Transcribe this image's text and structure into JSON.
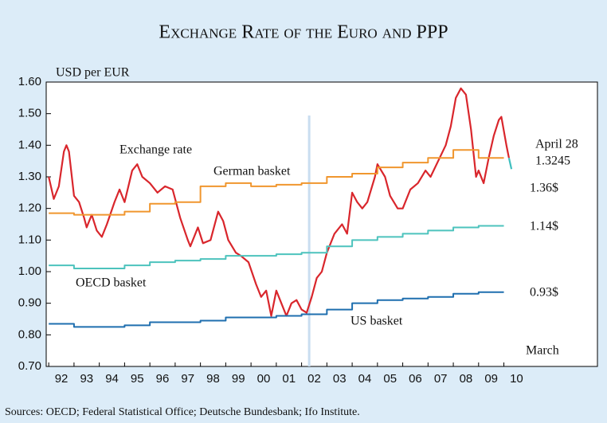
{
  "chart_data": {
    "type": "line",
    "title": "Exchange Rate of the Euro and PPP",
    "y_label": "USD per EUR",
    "source": "Sources: OECD; Federal Statistical Office; Deutsche Bundesbank; Ifo Institute.",
    "xlim": [
      1991.9,
      2013.7
    ],
    "xticks": [
      {
        "value": 1992.5,
        "label": "92"
      },
      {
        "value": 1993.5,
        "label": "93"
      },
      {
        "value": 1994.5,
        "label": "94"
      },
      {
        "value": 1995.5,
        "label": "95"
      },
      {
        "value": 1996.5,
        "label": "96"
      },
      {
        "value": 1997.5,
        "label": "97"
      },
      {
        "value": 1998.5,
        "label": "98"
      },
      {
        "value": 1999.5,
        "label": "99"
      },
      {
        "value": 2000.5,
        "label": "00"
      },
      {
        "value": 2001.5,
        "label": "01"
      },
      {
        "value": 2002.5,
        "label": "02"
      },
      {
        "value": 2003.5,
        "label": "03"
      },
      {
        "value": 2004.5,
        "label": "04"
      },
      {
        "value": 2005.5,
        "label": "05"
      },
      {
        "value": 2006.5,
        "label": "06"
      },
      {
        "value": 2007.5,
        "label": "07"
      },
      {
        "value": 2008.5,
        "label": "08"
      },
      {
        "value": 2009.5,
        "label": "09"
      },
      {
        "value": 2010.5,
        "label": "10"
      }
    ],
    "ylim": [
      0.7,
      1.6
    ],
    "yticks": [
      {
        "value": 0.7,
        "label": "0.70"
      },
      {
        "value": 0.8,
        "label": "0.80"
      },
      {
        "value": 0.9,
        "label": "0.90"
      },
      {
        "value": 1.0,
        "label": "1.00"
      },
      {
        "value": 1.1,
        "label": "1.10"
      },
      {
        "value": 1.2,
        "label": "1.20"
      },
      {
        "value": 1.3,
        "label": "1.30"
      },
      {
        "value": 1.4,
        "label": "1.40"
      },
      {
        "value": 1.5,
        "label": "1.50"
      },
      {
        "value": 1.6,
        "label": "1.60"
      }
    ],
    "reference_x": 2002.3,
    "series": [
      {
        "name": "Exchange rate",
        "color": "#d9262c",
        "step": false,
        "x": [
          1992.0,
          1992.2,
          1992.4,
          1992.6,
          1992.7,
          1992.8,
          1993.0,
          1993.2,
          1993.4,
          1993.5,
          1993.7,
          1993.9,
          1994.1,
          1994.3,
          1994.6,
          1994.8,
          1995.0,
          1995.3,
          1995.5,
          1995.7,
          1996.0,
          1996.3,
          1996.6,
          1996.9,
          1997.2,
          1997.5,
          1997.6,
          1997.9,
          1998.1,
          1998.4,
          1998.7,
          1998.9,
          1999.1,
          1999.4,
          1999.6,
          1999.9,
          2000.2,
          2000.4,
          2000.6,
          2000.8,
          2001.0,
          2001.2,
          2001.4,
          2001.6,
          2001.8,
          2002.0,
          2002.2,
          2002.4,
          2002.6,
          2002.8,
          2003.0,
          2003.3,
          2003.6,
          2003.8,
          2004.0,
          2004.2,
          2004.4,
          2004.6,
          2004.9,
          2005.0,
          2005.3,
          2005.5,
          2005.8,
          2006.0,
          2006.3,
          2006.6,
          2006.9,
          2007.1,
          2007.4,
          2007.7,
          2007.9,
          2008.1,
          2008.3,
          2008.5,
          2008.7,
          2008.9,
          2009.0,
          2009.2,
          2009.4,
          2009.6,
          2009.8,
          2009.9,
          2010.1,
          2010.2
        ],
        "values": [
          1.3,
          1.23,
          1.27,
          1.38,
          1.4,
          1.38,
          1.24,
          1.22,
          1.17,
          1.14,
          1.18,
          1.13,
          1.11,
          1.15,
          1.22,
          1.26,
          1.22,
          1.32,
          1.34,
          1.3,
          1.28,
          1.25,
          1.27,
          1.26,
          1.17,
          1.1,
          1.08,
          1.14,
          1.09,
          1.1,
          1.19,
          1.16,
          1.1,
          1.06,
          1.05,
          1.03,
          0.96,
          0.92,
          0.94,
          0.86,
          0.94,
          0.9,
          0.86,
          0.9,
          0.91,
          0.88,
          0.87,
          0.92,
          0.98,
          1.0,
          1.06,
          1.12,
          1.15,
          1.12,
          1.25,
          1.22,
          1.2,
          1.22,
          1.3,
          1.34,
          1.3,
          1.24,
          1.2,
          1.2,
          1.26,
          1.28,
          1.32,
          1.3,
          1.35,
          1.4,
          1.46,
          1.55,
          1.58,
          1.56,
          1.45,
          1.3,
          1.32,
          1.28,
          1.36,
          1.43,
          1.48,
          1.49,
          1.4,
          1.36
        ]
      },
      {
        "color": "#3fbfbf",
        "step": false,
        "x": [
          2010.2,
          2010.3
        ],
        "values": [
          1.36,
          1.3245
        ]
      },
      {
        "name": "German basket",
        "color": "#f0962e",
        "step": true,
        "x": [
          1992,
          1993,
          1994,
          1995,
          1996,
          1997,
          1998,
          1999,
          2000,
          2001,
          2002,
          2003,
          2004,
          2005,
          2006,
          2007,
          2008,
          2009,
          2010
        ],
        "values": [
          1.185,
          1.18,
          1.18,
          1.19,
          1.215,
          1.22,
          1.27,
          1.28,
          1.27,
          1.275,
          1.28,
          1.3,
          1.31,
          1.33,
          1.345,
          1.36,
          1.385,
          1.36,
          1.36
        ]
      },
      {
        "name": "OECD basket",
        "color": "#4dc3bd",
        "step": true,
        "x": [
          1992,
          1993,
          1994,
          1995,
          1996,
          1997,
          1998,
          1999,
          2000,
          2001,
          2002,
          2003,
          2004,
          2005,
          2006,
          2007,
          2008,
          2009,
          2010
        ],
        "values": [
          1.02,
          1.01,
          1.01,
          1.02,
          1.03,
          1.035,
          1.04,
          1.05,
          1.05,
          1.055,
          1.06,
          1.08,
          1.1,
          1.11,
          1.12,
          1.13,
          1.14,
          1.145,
          1.145
        ]
      },
      {
        "name": "US basket",
        "color": "#1f6faf",
        "step": true,
        "x": [
          1992,
          1993,
          1994,
          1995,
          1996,
          1997,
          1998,
          1999,
          2000,
          2001,
          2002,
          2003,
          2004,
          2005,
          2006,
          2007,
          2008,
          2009,
          2010
        ],
        "values": [
          0.835,
          0.825,
          0.825,
          0.83,
          0.84,
          0.84,
          0.845,
          0.855,
          0.855,
          0.86,
          0.865,
          0.88,
          0.9,
          0.91,
          0.915,
          0.92,
          0.93,
          0.935,
          0.935
        ]
      }
    ],
    "annotations": [
      "March",
      "April 28",
      "1.3245",
      "1.36$",
      "1.14$",
      "0.93$"
    ]
  }
}
